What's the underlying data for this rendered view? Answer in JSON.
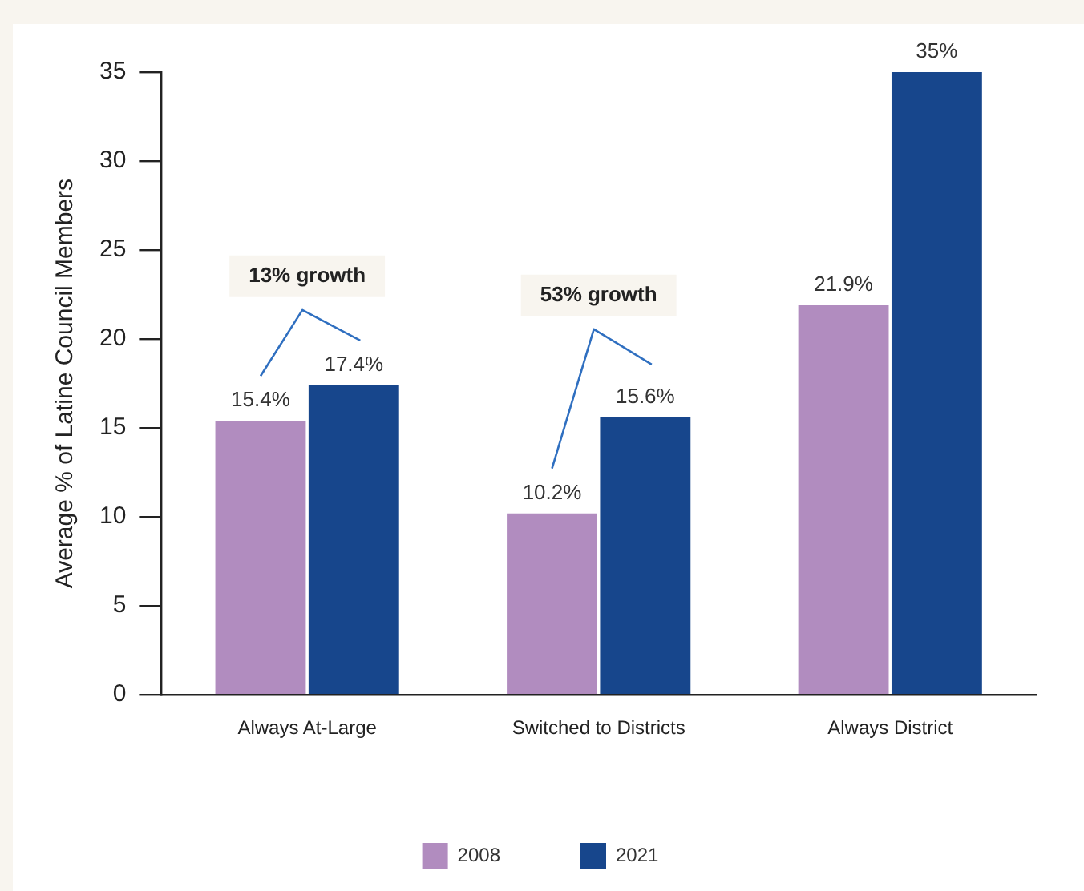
{
  "chart_data": {
    "type": "bar",
    "ylabel": "Average % of Latine Council Members",
    "categories": [
      "Always At-Large",
      "Switched to Districts",
      "Always District"
    ],
    "series": [
      {
        "name": "2008",
        "color": "#b18cbf",
        "values": [
          15.4,
          10.2,
          21.9
        ],
        "value_labels": [
          "15.4%",
          "10.2%",
          "21.9%"
        ]
      },
      {
        "name": "2021",
        "color": "#17468c",
        "values": [
          17.4,
          15.6,
          35
        ],
        "value_labels": [
          "17.4%",
          "15.6%",
          "35%"
        ]
      }
    ],
    "ylim": [
      0,
      35
    ],
    "yticks": [
      0,
      5,
      10,
      15,
      20,
      25,
      30,
      35
    ],
    "grid": false,
    "legend": "bottom",
    "annotations": [
      "13% growth",
      "53% growth"
    ]
  }
}
